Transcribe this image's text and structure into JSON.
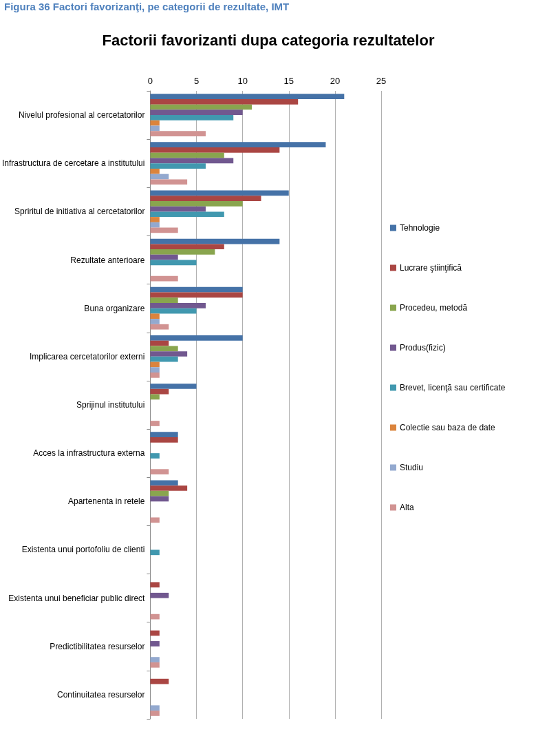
{
  "chart_data": {
    "type": "bar",
    "orientation": "horizontal",
    "title": "Factorii favorizanti dupa categoria rezultatelor",
    "annotations": [
      "Figura 36 Factori favorizanţi, pe categorii de rezultate, IMT"
    ],
    "categories": [
      "Nivelul profesional al cercetatorilor",
      "Infrastructura de cercetare a institutului",
      "Spriritul de initiativa al cercetatorilor",
      "Rezultate anterioare",
      "Buna organizare",
      "Implicarea cercetatorilor externi",
      "Sprijinul institutului",
      "Acces la infrastructura externa",
      "Apartenenta in retele",
      "Existenta unui portofoliu de clienti",
      "Existenta unui beneficiar public direct",
      "Predictibilitatea resurselor",
      "Continuitatea resurselor"
    ],
    "series": [
      {
        "name": "Tehnologie",
        "color": "#4572a7",
        "values": [
          21,
          19,
          15,
          14,
          10,
          10,
          5,
          3,
          3,
          0,
          0,
          0,
          0
        ]
      },
      {
        "name": "Lucrare ştiinţifică",
        "color": "#aa4643",
        "values": [
          16,
          14,
          12,
          8,
          10,
          2,
          2,
          3,
          4,
          0,
          1,
          1,
          2
        ]
      },
      {
        "name": "Procedeu, metodă",
        "color": "#89a54e",
        "values": [
          11,
          8,
          10,
          7,
          3,
          3,
          1,
          0,
          2,
          0,
          0,
          0,
          0
        ]
      },
      {
        "name": "Produs(fizic)",
        "color": "#71588f",
        "values": [
          10,
          9,
          6,
          3,
          6,
          4,
          0,
          0,
          2,
          0,
          2,
          1,
          0
        ]
      },
      {
        "name": "Brevet, licenţă sau certificate",
        "color": "#4198af",
        "values": [
          9,
          6,
          8,
          5,
          5,
          3,
          0,
          1,
          0,
          1,
          0,
          0,
          0
        ]
      },
      {
        "name": "Colectie sau baza de date",
        "color": "#db843d",
        "values": [
          1,
          1,
          1,
          0,
          1,
          1,
          0,
          0,
          0,
          0,
          0,
          0,
          0
        ]
      },
      {
        "name": "Studiu",
        "color": "#93a9cf",
        "values": [
          1,
          2,
          1,
          0,
          1,
          1,
          0,
          0,
          0,
          0,
          0,
          1,
          1
        ]
      },
      {
        "name": "Alta",
        "color": "#d19392",
        "values": [
          6,
          4,
          3,
          3,
          2,
          1,
          1,
          2,
          1,
          0,
          1,
          1,
          1
        ]
      }
    ],
    "xlim": [
      0,
      25
    ],
    "xticks": [
      0,
      5,
      10,
      15,
      20,
      25
    ],
    "grid": "x",
    "legend": "right"
  }
}
